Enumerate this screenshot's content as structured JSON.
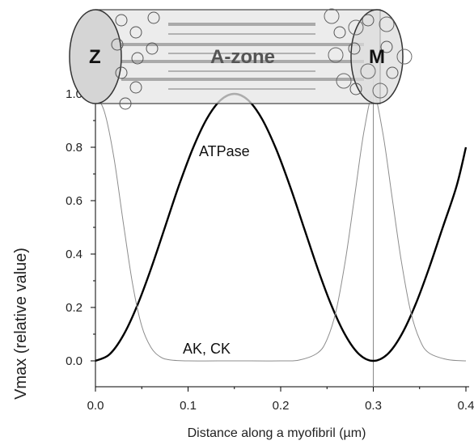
{
  "chart_data": {
    "type": "line",
    "xlabel": "Distance along a myofibril (µm)",
    "ylabel": "Vmax (relative value)",
    "xlim": [
      0.0,
      0.4
    ],
    "ylim": [
      -0.05,
      1.05
    ],
    "x_ticks": [
      "0.0",
      "0.1",
      "0.2",
      "0.3",
      "0.4"
    ],
    "y_ticks": [
      "0.0",
      "0.2",
      "0.4",
      "0.6",
      "0.8",
      "1.0"
    ],
    "grid": false,
    "series": [
      {
        "label": "ATPase",
        "style": "thick-black",
        "x": [
          0.0,
          0.015,
          0.03,
          0.045,
          0.06,
          0.075,
          0.09,
          0.105,
          0.12,
          0.135,
          0.15,
          0.165,
          0.18,
          0.195,
          0.21,
          0.225,
          0.24,
          0.255,
          0.27,
          0.285,
          0.3,
          0.315,
          0.33,
          0.345,
          0.36,
          0.375,
          0.39,
          0.4
        ],
        "y": [
          0.0,
          0.024,
          0.095,
          0.206,
          0.345,
          0.5,
          0.655,
          0.794,
          0.905,
          0.976,
          1.0,
          0.976,
          0.905,
          0.794,
          0.655,
          0.5,
          0.345,
          0.206,
          0.095,
          0.024,
          0.0,
          0.024,
          0.095,
          0.206,
          0.345,
          0.5,
          0.655,
          0.8
        ]
      },
      {
        "label": "AK, CK",
        "style": "thin-gray",
        "x": [
          0.0,
          0.01,
          0.02,
          0.03,
          0.04,
          0.05,
          0.06,
          0.07,
          0.08,
          0.1,
          0.15,
          0.2,
          0.22,
          0.24,
          0.25,
          0.26,
          0.27,
          0.28,
          0.29,
          0.3,
          0.31,
          0.32,
          0.33,
          0.34,
          0.35,
          0.36,
          0.38,
          0.4
        ],
        "y": [
          1.0,
          0.93,
          0.76,
          0.52,
          0.29,
          0.13,
          0.05,
          0.015,
          0.004,
          0.0,
          0.0,
          0.0,
          0.003,
          0.03,
          0.08,
          0.19,
          0.38,
          0.62,
          0.86,
          1.0,
          0.86,
          0.62,
          0.38,
          0.19,
          0.08,
          0.03,
          0.005,
          0.0
        ]
      }
    ],
    "reference_line_x": 0.3,
    "annotations": {
      "atpase": "ATPase",
      "akck": "AK, CK"
    },
    "inset": {
      "z_label": "Z",
      "m_label": "M",
      "zone_label": "A-zone"
    }
  }
}
